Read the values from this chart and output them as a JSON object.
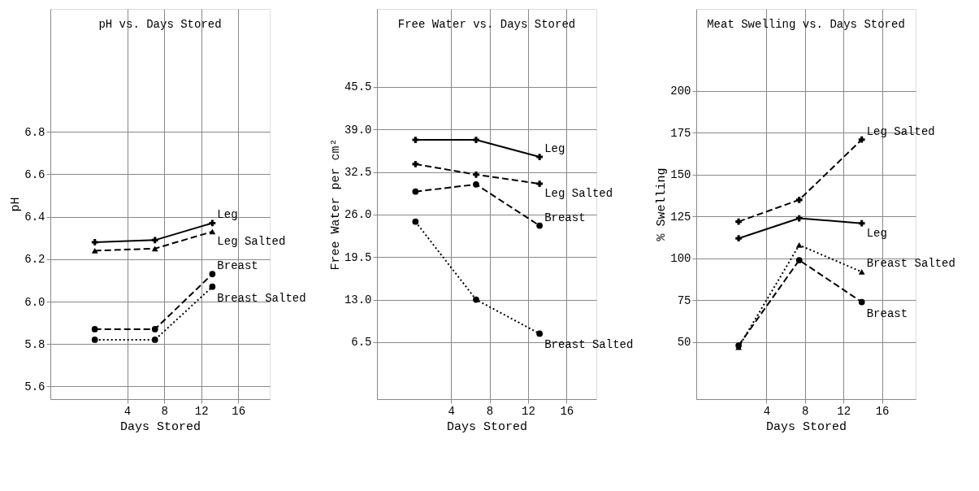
{
  "chart_data": [
    {
      "type": "line",
      "title": "pH vs. Days Stored",
      "xlabel": "Days Stored",
      "ylabel": "pH",
      "xlim": [
        -4.3,
        19.4
      ],
      "ylim": [
        5.54,
        7.38
      ],
      "xticks": [
        4,
        8,
        12,
        16
      ],
      "yticks": [
        5.6,
        5.8,
        {
          "value": 6,
          "label": "6.0"
        },
        6.2,
        6.4,
        6.6,
        6.8
      ],
      "grid": true,
      "x": [
        0.5,
        7,
        13.2
      ],
      "series": [
        {
          "name": "Leg",
          "color": "#000000",
          "values": [
            6.28,
            6.29,
            6.37
          ],
          "line_style": "solid",
          "marker": "cross"
        },
        {
          "name": "Leg Salted",
          "color": "#000000",
          "values": [
            6.24,
            6.25,
            6.33
          ],
          "line_style": "dashed",
          "marker": "triangle"
        },
        {
          "name": "Breast",
          "color": "#000000",
          "values": [
            5.87,
            5.87,
            6.13
          ],
          "line_style": "dashed",
          "marker": "circle"
        },
        {
          "name": "Breast Salted",
          "color": "#000000",
          "values": [
            5.82,
            5.82,
            6.07
          ],
          "line_style": "dotted",
          "marker": "circle"
        }
      ]
    },
    {
      "type": "line",
      "title": "Free Water vs. Days Stored",
      "xlabel": "Days Stored",
      "ylabel": "Free Water per cm²",
      "xlim": [
        -3.7,
        19.1
      ],
      "ylim": [
        -2.2,
        57.4
      ],
      "xticks": [
        4,
        8,
        12,
        16
      ],
      "yticks": [
        6.5,
        {
          "value": 13,
          "label": "13.0"
        },
        19.5,
        {
          "value": 26,
          "label": "26.0"
        },
        32.5,
        {
          "value": 39,
          "label": "39.0"
        },
        45.5
      ],
      "grid": true,
      "x": [
        0.3,
        6.6,
        13.2
      ],
      "series": [
        {
          "name": "Leg",
          "color": "#000000",
          "values": [
            37.4,
            37.4,
            34.8
          ],
          "line_style": "solid",
          "marker": "cross"
        },
        {
          "name": "Leg Salted",
          "color": "#000000",
          "values": [
            33.7,
            32.1,
            30.7
          ],
          "line_style": "dashed",
          "marker": "cross"
        },
        {
          "name": "Breast",
          "color": "#000000",
          "values": [
            29.5,
            30.6,
            24.3
          ],
          "line_style": "dashed",
          "marker": "circle"
        },
        {
          "name": "Breast Salted",
          "color": "#000000",
          "values": [
            24.9,
            13.0,
            7.8
          ],
          "line_style": "dotted",
          "marker": "circle"
        }
      ]
    },
    {
      "type": "line",
      "title": "Meat Swelling vs. Days Stored",
      "xlabel": "Days Stored",
      "ylabel": "% Swelling",
      "xlim": [
        -3.3,
        19.5
      ],
      "ylim": [
        16,
        249
      ],
      "xticks": [
        4,
        8,
        12,
        16
      ],
      "yticks": [
        50,
        75,
        100,
        125,
        150,
        175,
        200
      ],
      "grid": true,
      "x": [
        1.1,
        7.4,
        13.9
      ],
      "series": [
        {
          "name": "Leg Salted",
          "color": "#000000",
          "values": [
            122,
            135,
            171
          ],
          "line_style": "dashed",
          "marker": "cross"
        },
        {
          "name": "Leg",
          "color": "#000000",
          "values": [
            112,
            124,
            121
          ],
          "line_style": "solid",
          "marker": "cross"
        },
        {
          "name": "Breast Salted",
          "color": "#000000",
          "values": [
            47,
            108,
            92
          ],
          "line_style": "dotted",
          "marker": "triangle"
        },
        {
          "name": "Breast",
          "color": "#000000",
          "values": [
            48,
            99,
            74
          ],
          "line_style": "dashed",
          "marker": "circle"
        }
      ]
    }
  ]
}
